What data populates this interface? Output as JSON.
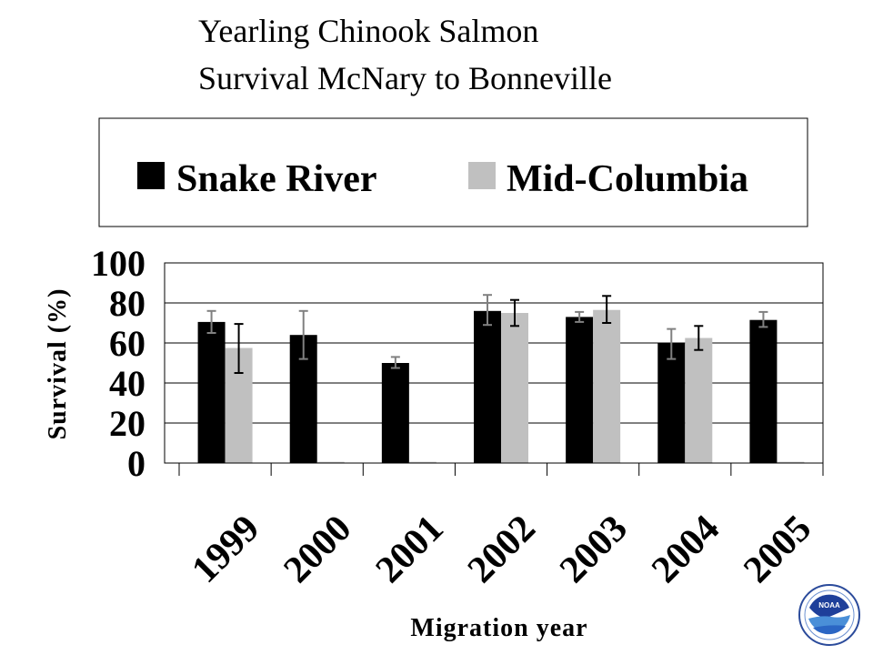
{
  "chart_data": {
    "type": "bar",
    "title": "Yearling Chinook Salmon",
    "subtitle": "Survival McNary to Bonneville",
    "xlabel": "Migration year",
    "ylabel": "Survival (%)",
    "ylim": [
      0,
      100
    ],
    "yticks": [
      "0",
      "20",
      "40",
      "60",
      "80",
      "100"
    ],
    "categories": [
      "1999",
      "2000",
      "2001",
      "2002",
      "2003",
      "2004",
      "2005"
    ],
    "grid": true,
    "legend_position": "top",
    "series": [
      {
        "name": "Snake River",
        "color": "#000000",
        "values": [
          70.5,
          64,
          50,
          76,
          73,
          60,
          71.5
        ],
        "error_low": [
          65,
          52,
          47.5,
          69,
          70.5,
          52,
          68
        ],
        "error_high": [
          76,
          76,
          53,
          84,
          75.5,
          67,
          75.5
        ],
        "error_color": "#808080"
      },
      {
        "name": "Mid-Columbia",
        "color": "#c0c0c0",
        "values": [
          57.5,
          0,
          0,
          75,
          76.5,
          62.5,
          0
        ],
        "error_low": [
          45,
          null,
          null,
          68.5,
          70,
          56.5,
          null
        ],
        "error_high": [
          69.5,
          null,
          null,
          81.5,
          83.5,
          68.5,
          null
        ],
        "error_color": "#000000"
      }
    ]
  },
  "logo": {
    "name": "NOAA",
    "text": "NOAA"
  }
}
